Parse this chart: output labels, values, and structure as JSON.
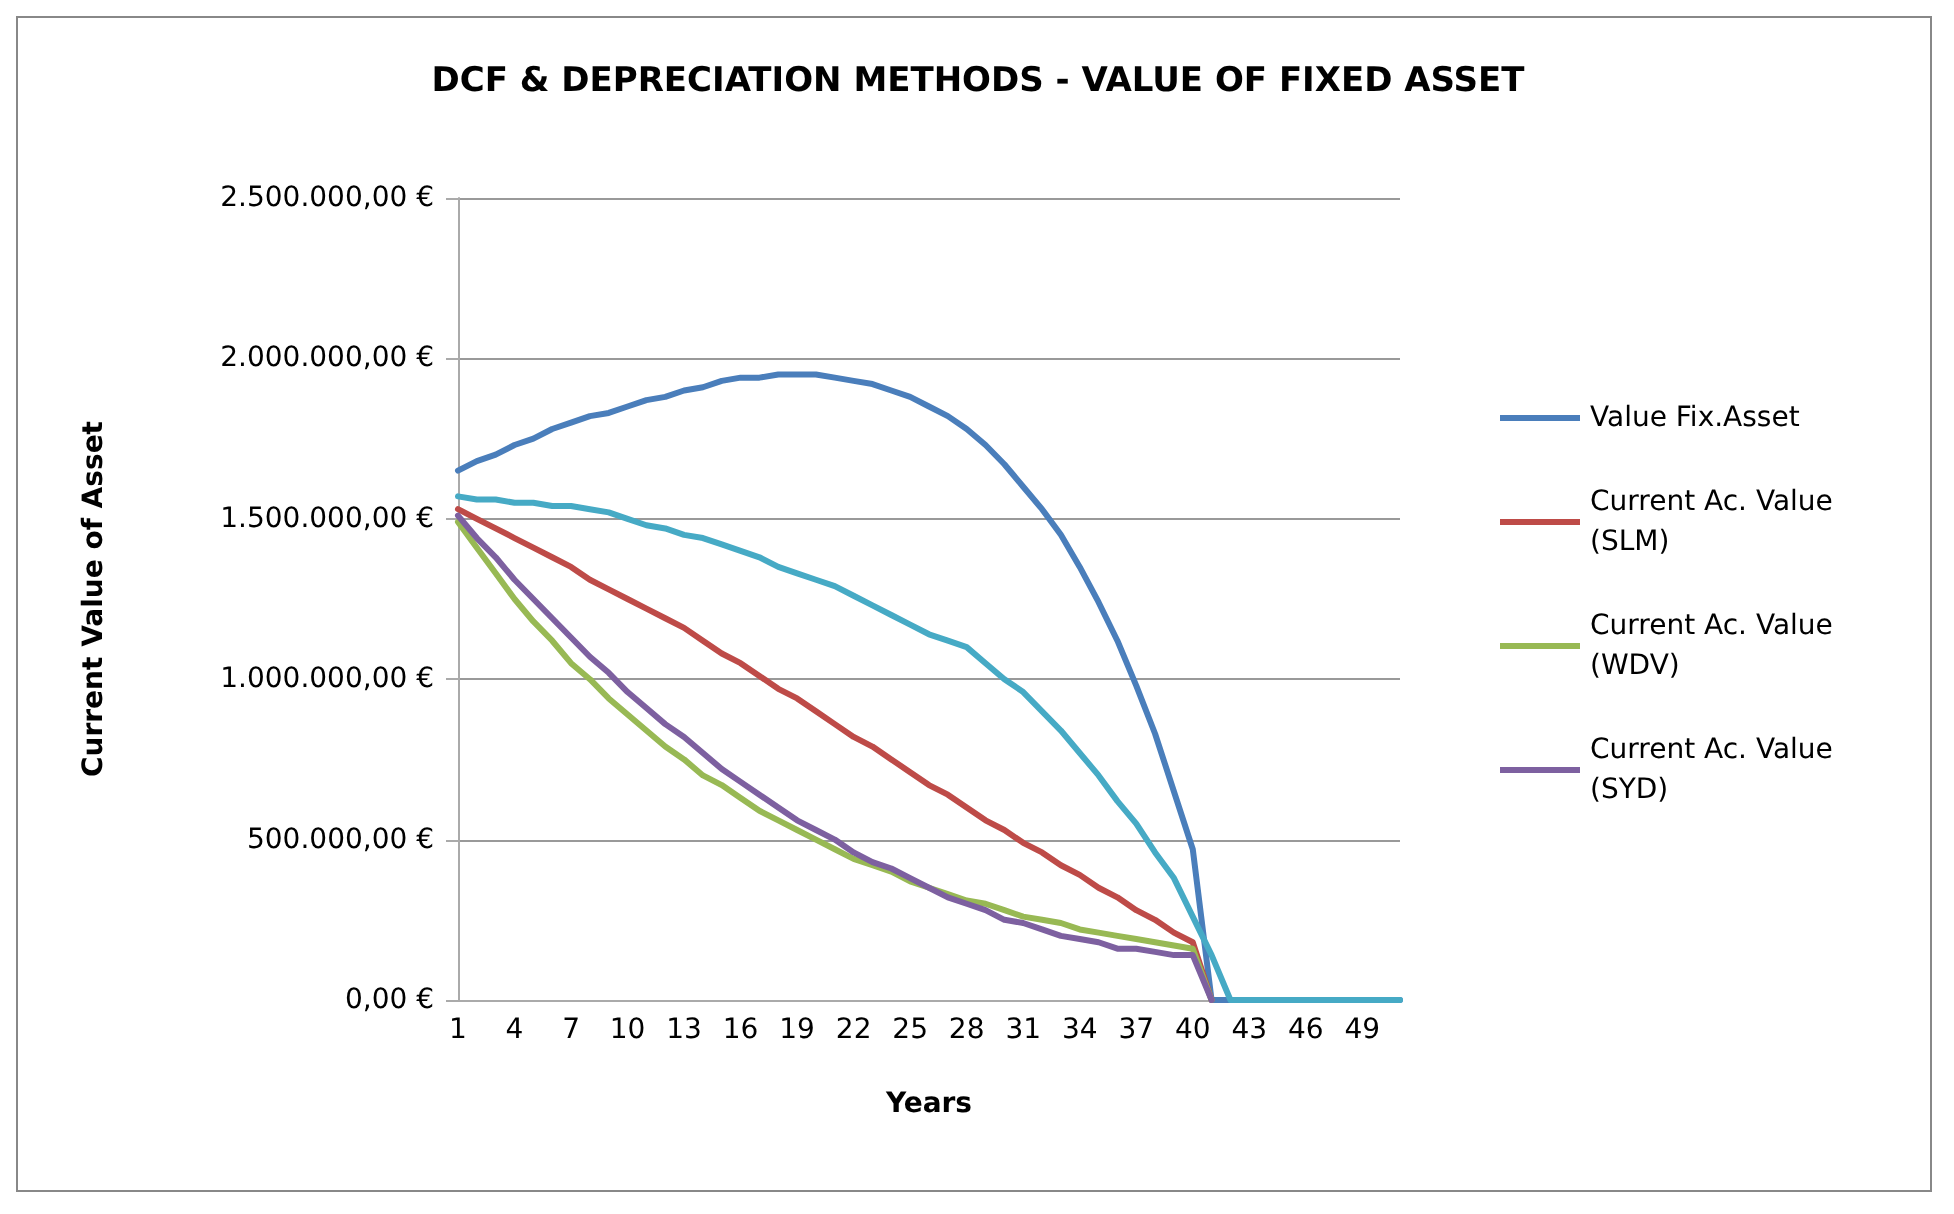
{
  "chart_data": {
    "type": "line",
    "title": "DCF & DEPRECIATION METHODS - VALUE OF FIXED ASSET",
    "xlabel": "Years",
    "ylabel": "Current Value of Asset",
    "categories": [
      "1",
      null,
      null,
      "4",
      null,
      null,
      "7",
      null,
      null,
      "10",
      null,
      null,
      "13",
      null,
      null,
      "16",
      null,
      null,
      "19",
      null,
      null,
      "22",
      null,
      null,
      "25",
      null,
      null,
      "28",
      null,
      null,
      "31",
      null,
      null,
      "34",
      null,
      null,
      "37",
      null,
      null,
      "40",
      null,
      null,
      "43",
      null,
      null,
      "46",
      null,
      null,
      "49",
      null,
      null
    ],
    "series": [
      {
        "name": "Value Fix.Asset",
        "color": "#4a7ebb",
        "values": [
          1650000,
          1680000,
          1700000,
          1730000,
          1750000,
          1780000,
          1800000,
          1820000,
          1830000,
          1850000,
          1870000,
          1880000,
          1900000,
          1910000,
          1930000,
          1940000,
          1940000,
          1950000,
          1950000,
          1950000,
          1940000,
          1930000,
          1920000,
          1900000,
          1880000,
          1850000,
          1820000,
          1780000,
          1730000,
          1670000,
          1600000,
          1530000,
          1450000,
          1350000,
          1240000,
          1120000,
          980000,
          830000,
          650000,
          470000,
          0,
          0,
          0,
          0,
          0,
          0,
          0,
          0,
          0,
          0,
          0
        ]
      },
      {
        "name": "Current Ac. Value (SLM)",
        "color": "#be4b48",
        "values": [
          1530000,
          1500000,
          1470000,
          1440000,
          1410000,
          1380000,
          1350000,
          1310000,
          1280000,
          1250000,
          1220000,
          1190000,
          1160000,
          1120000,
          1080000,
          1050000,
          1010000,
          970000,
          940000,
          900000,
          860000,
          820000,
          790000,
          750000,
          710000,
          670000,
          640000,
          600000,
          560000,
          530000,
          490000,
          460000,
          420000,
          390000,
          350000,
          320000,
          280000,
          250000,
          210000,
          180000,
          0,
          null,
          null,
          null,
          null,
          null,
          null,
          null,
          null,
          null,
          null
        ]
      },
      {
        "name": "Current Ac. Value (WDV)",
        "color": "#98b954",
        "values": [
          1490000,
          1410000,
          1330000,
          1250000,
          1180000,
          1120000,
          1050000,
          1000000,
          940000,
          890000,
          840000,
          790000,
          750000,
          700000,
          670000,
          630000,
          590000,
          560000,
          530000,
          500000,
          470000,
          440000,
          420000,
          400000,
          370000,
          350000,
          330000,
          310000,
          300000,
          280000,
          260000,
          250000,
          240000,
          220000,
          210000,
          200000,
          190000,
          180000,
          170000,
          160000,
          0,
          null,
          null,
          null,
          null,
          null,
          null,
          null,
          null,
          null,
          null
        ]
      },
      {
        "name": "Current Ac. Value (SYD)",
        "color": "#7d60a0",
        "values": [
          1510000,
          1440000,
          1380000,
          1310000,
          1250000,
          1190000,
          1130000,
          1070000,
          1020000,
          960000,
          910000,
          860000,
          820000,
          770000,
          720000,
          680000,
          640000,
          600000,
          560000,
          530000,
          500000,
          460000,
          430000,
          410000,
          380000,
          350000,
          320000,
          300000,
          280000,
          250000,
          240000,
          220000,
          200000,
          190000,
          180000,
          160000,
          160000,
          150000,
          140000,
          140000,
          0,
          null,
          null,
          null,
          null,
          null,
          null,
          null,
          null,
          null,
          null
        ]
      },
      {
        "color": "#46aac5",
        "values": [
          1570000,
          1560000,
          1560000,
          1550000,
          1550000,
          1540000,
          1540000,
          1530000,
          1520000,
          1500000,
          1480000,
          1470000,
          1450000,
          1440000,
          1420000,
          1400000,
          1380000,
          1350000,
          1330000,
          1310000,
          1290000,
          1260000,
          1230000,
          1200000,
          1170000,
          1140000,
          1120000,
          1100000,
          1050000,
          1000000,
          960000,
          900000,
          840000,
          770000,
          700000,
          620000,
          550000,
          460000,
          380000,
          260000,
          140000,
          0,
          0,
          0,
          0,
          0,
          0,
          0,
          0,
          0,
          0
        ]
      }
    ],
    "ylim": [
      0,
      2500000
    ],
    "yticks": [
      {
        "value": 0,
        "label": "0,00 €"
      },
      {
        "value": 500000,
        "label": "500.000,00 €"
      },
      {
        "value": 1000000,
        "label": "1.000.000,00 €"
      },
      {
        "value": 1500000,
        "label": "1.500.000,00 €"
      },
      {
        "value": 2000000,
        "label": "2.000.000,00 €"
      },
      {
        "value": 2500000,
        "label": "2.500.000,00 €"
      }
    ],
    "grid": "y",
    "legend": "right",
    "marker": "none",
    "line_style": "solid"
  }
}
